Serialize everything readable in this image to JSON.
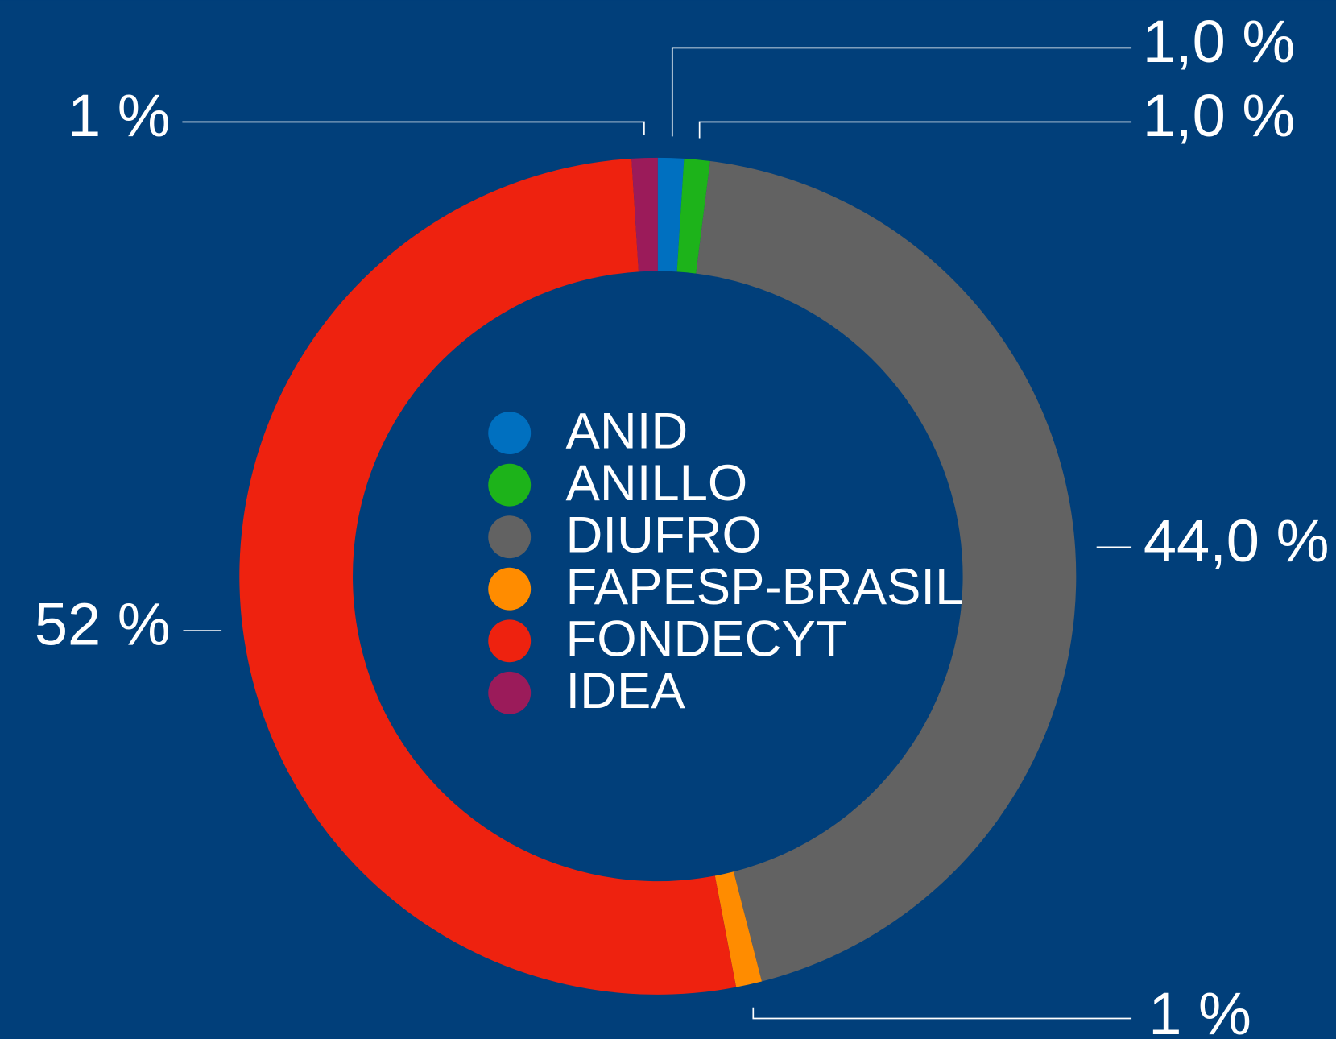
{
  "chart_data": {
    "type": "donut",
    "categories": [
      "ANID",
      "ANILLO",
      "DIUFRO",
      "FAPESP-BRASIL",
      "FONDECYT",
      "IDEA"
    ],
    "values": [
      1,
      1,
      44,
      1,
      52,
      1
    ],
    "value_labels": [
      "1,0 %",
      "1,0 %",
      "44,0 %",
      "1 %",
      "52 %",
      "1 %"
    ],
    "colors": [
      "#0070c0",
      "#1db31a",
      "#626262",
      "#ff8c00",
      "#ee220f",
      "#9b1b5a"
    ]
  }
}
